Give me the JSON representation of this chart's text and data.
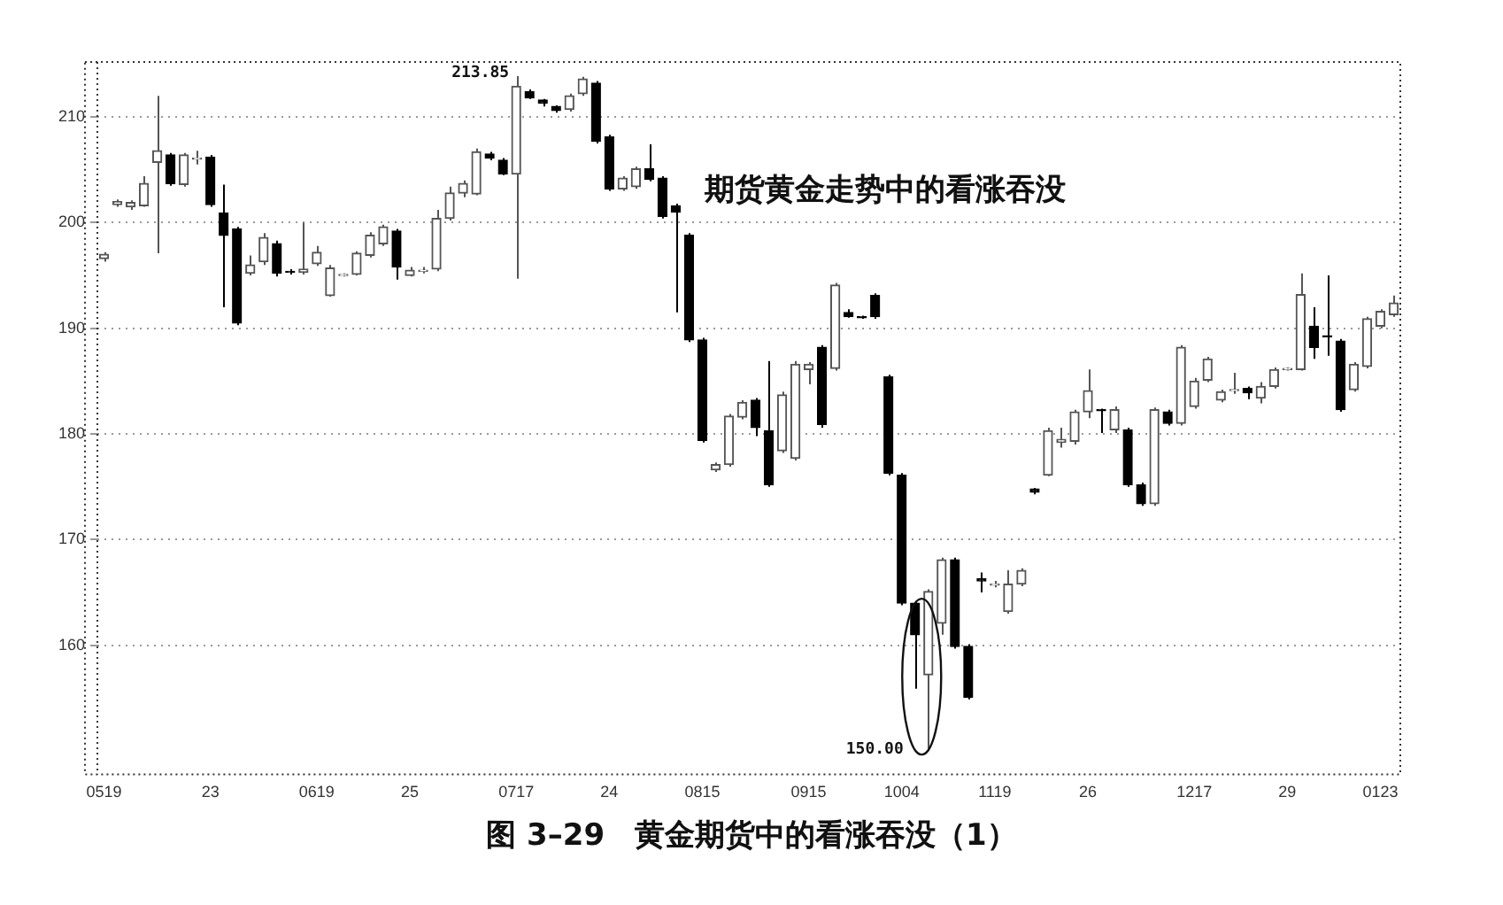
{
  "chart_data": {
    "type": "candlestick",
    "title": "图 3–29　黄金期货中的看涨吞没（1）",
    "annotations": [
      "期货黄金走势中的看涨吞没",
      "213.85",
      "150.00"
    ],
    "categories": [
      "0519",
      null,
      null,
      null,
      null,
      null,
      null,
      null,
      "23",
      null,
      null,
      null,
      null,
      null,
      null,
      null,
      "0619",
      null,
      null,
      null,
      null,
      null,
      null,
      "25",
      null,
      null,
      null,
      null,
      null,
      null,
      null,
      "0717",
      null,
      null,
      null,
      null,
      null,
      null,
      "24",
      null,
      null,
      null,
      null,
      null,
      null,
      "0815",
      null,
      null,
      null,
      null,
      null,
      null,
      null,
      "0915",
      null,
      null,
      null,
      null,
      null,
      null,
      "1004",
      null,
      null,
      null,
      null,
      null,
      null,
      "1119",
      null,
      null,
      null,
      null,
      null,
      null,
      "26",
      null,
      null,
      null,
      null,
      null,
      null,
      null,
      "1217",
      null,
      null,
      null,
      null,
      null,
      null,
      "29",
      null,
      null,
      null,
      null,
      null,
      null,
      "0123",
      null
    ],
    "colors": [
      "#555555",
      "#555555",
      "#555555",
      "#555555",
      "#555555",
      "#000000",
      "#555555",
      "#555555",
      "#000000",
      "#000000",
      "#000000",
      "#555555",
      "#555555",
      "#000000",
      "#000000",
      "#555555",
      "#555555",
      "#555555",
      "#555555",
      "#555555",
      "#555555",
      "#555555",
      "#000000",
      "#555555",
      "#555555",
      "#555555",
      "#555555",
      "#555555",
      "#555555",
      "#000000",
      "#000000",
      "#555555",
      "#000000",
      "#000000",
      "#000000",
      "#555555",
      "#555555",
      "#000000",
      "#000000",
      "#555555",
      "#555555",
      "#000000",
      "#000000",
      "#000000",
      "#000000",
      "#000000",
      "#555555",
      "#555555",
      "#555555",
      "#000000",
      "#000000",
      "#555555",
      "#555555",
      "#555555",
      "#000000",
      "#555555",
      "#000000",
      "#000000",
      "#000000",
      "#000000",
      "#000000",
      "#000000",
      "#555555",
      "#555555",
      "#000000",
      "#000000",
      "#000000",
      "#555555",
      "#555555",
      "#555555",
      "#000000",
      "#555555",
      "#555555",
      "#555555",
      "#555555",
      "#000000",
      "#555555",
      "#000000",
      "#000000",
      "#555555",
      "#000000",
      "#555555",
      "#555555",
      "#555555",
      "#555555",
      "#555555",
      "#000000",
      "#555555",
      "#555555",
      "#555555",
      "#555555",
      "#000000",
      "#000000",
      "#000000",
      "#555555",
      "#555555",
      "#555555",
      "#555555"
    ],
    "ohlc": [
      [
        196.6,
        197.2,
        196.3,
        197.0
      ],
      [
        201.7,
        202.2,
        201.5,
        202.0
      ],
      [
        201.5,
        202.1,
        201.2,
        201.9
      ],
      [
        201.6,
        204.4,
        201.5,
        203.7
      ],
      [
        205.7,
        212.0,
        197.1,
        206.8
      ],
      [
        206.4,
        206.6,
        203.5,
        203.7
      ],
      [
        203.6,
        206.6,
        203.4,
        206.4
      ],
      [
        206.0,
        206.8,
        205.5,
        206.1
      ],
      [
        206.2,
        206.4,
        201.5,
        201.7
      ],
      [
        200.9,
        203.6,
        192.0,
        198.8
      ],
      [
        199.4,
        199.6,
        190.3,
        190.5
      ],
      [
        195.2,
        196.9,
        195.0,
        196.0
      ],
      [
        196.3,
        199.0,
        196.0,
        198.6
      ],
      [
        198.0,
        198.3,
        194.9,
        195.2
      ],
      [
        195.4,
        195.6,
        195.1,
        195.3
      ],
      [
        195.3,
        200.0,
        195.1,
        195.6
      ],
      [
        196.1,
        197.8,
        195.9,
        197.2
      ],
      [
        193.1,
        196.0,
        193.0,
        195.7
      ],
      [
        195.0,
        195.2,
        194.9,
        195.1
      ],
      [
        195.1,
        197.3,
        195.0,
        197.1
      ],
      [
        196.9,
        199.1,
        196.7,
        198.8
      ],
      [
        198.0,
        199.8,
        197.8,
        199.6
      ],
      [
        199.2,
        199.4,
        194.6,
        195.8
      ],
      [
        195.0,
        195.8,
        194.9,
        195.5
      ],
      [
        195.4,
        195.8,
        195.2,
        195.5
      ],
      [
        195.6,
        201.2,
        195.4,
        200.4
      ],
      [
        200.4,
        203.4,
        200.2,
        202.8
      ],
      [
        202.8,
        204.0,
        202.4,
        203.7
      ],
      [
        202.7,
        207.0,
        202.6,
        206.7
      ],
      [
        206.5,
        206.7,
        205.9,
        206.1
      ],
      [
        205.9,
        206.1,
        204.5,
        204.6
      ],
      [
        204.6,
        213.85,
        194.7,
        212.9
      ],
      [
        212.4,
        212.6,
        211.7,
        211.8
      ],
      [
        211.6,
        211.7,
        211.0,
        211.3
      ],
      [
        211.0,
        211.1,
        210.4,
        210.6
      ],
      [
        210.7,
        212.2,
        210.5,
        212.0
      ],
      [
        212.2,
        213.8,
        212.0,
        213.6
      ],
      [
        213.2,
        213.4,
        207.5,
        207.7
      ],
      [
        208.1,
        208.3,
        203.0,
        203.2
      ],
      [
        203.2,
        204.4,
        203.0,
        204.2
      ],
      [
        203.4,
        205.3,
        203.2,
        205.1
      ],
      [
        205.1,
        207.4,
        203.9,
        204.1
      ],
      [
        204.2,
        204.4,
        200.4,
        200.6
      ],
      [
        201.6,
        201.8,
        191.5,
        201.0
      ],
      [
        198.8,
        199.0,
        188.7,
        188.9
      ],
      [
        188.9,
        189.1,
        179.2,
        179.4
      ],
      [
        176.6,
        177.3,
        176.4,
        177.1
      ],
      [
        177.1,
        181.9,
        176.9,
        181.7
      ],
      [
        181.6,
        183.2,
        181.4,
        183.0
      ],
      [
        183.2,
        183.4,
        179.8,
        180.6
      ],
      [
        180.3,
        186.9,
        175.0,
        175.2
      ],
      [
        178.4,
        184.0,
        178.2,
        183.7
      ],
      [
        177.7,
        186.9,
        177.5,
        186.6
      ],
      [
        186.1,
        186.8,
        184.7,
        186.6
      ],
      [
        188.2,
        188.4,
        180.6,
        180.9
      ],
      [
        186.2,
        194.3,
        186.0,
        194.1
      ],
      [
        191.5,
        191.8,
        191.0,
        191.1
      ],
      [
        191.1,
        191.2,
        190.9,
        191.0
      ],
      [
        193.1,
        193.3,
        190.9,
        191.1
      ],
      [
        185.4,
        185.6,
        176.1,
        176.3
      ],
      [
        176.1,
        176.3,
        163.8,
        164.0
      ],
      [
        164.0,
        164.2,
        155.9,
        161.0
      ],
      [
        157.2,
        165.3,
        150.0,
        165.1
      ],
      [
        162.1,
        168.3,
        161.0,
        168.1
      ],
      [
        168.1,
        168.3,
        159.7,
        159.9
      ],
      [
        159.9,
        160.1,
        154.9,
        155.1
      ],
      [
        166.3,
        166.9,
        165.0,
        166.1
      ],
      [
        165.7,
        166.1,
        165.5,
        165.8
      ],
      [
        163.2,
        167.1,
        163.0,
        165.8
      ],
      [
        165.8,
        167.3,
        165.6,
        167.1
      ],
      [
        174.8,
        174.9,
        174.3,
        174.5
      ],
      [
        176.1,
        180.6,
        176.0,
        180.3
      ],
      [
        179.2,
        180.6,
        178.7,
        179.5
      ],
      [
        179.3,
        182.3,
        179.0,
        182.1
      ],
      [
        182.1,
        186.1,
        181.5,
        184.1
      ],
      [
        182.3,
        182.4,
        180.1,
        182.2
      ],
      [
        180.4,
        182.6,
        180.1,
        182.3
      ],
      [
        180.4,
        180.6,
        175.0,
        175.2
      ],
      [
        175.2,
        175.4,
        173.2,
        173.4
      ],
      [
        173.4,
        182.5,
        173.2,
        182.3
      ],
      [
        182.1,
        182.3,
        180.8,
        181.0
      ],
      [
        181.0,
        188.4,
        180.8,
        188.2
      ],
      [
        182.6,
        185.3,
        182.4,
        185.0
      ],
      [
        185.1,
        187.3,
        184.9,
        187.1
      ],
      [
        183.2,
        184.2,
        183.0,
        184.0
      ],
      [
        184.1,
        185.8,
        183.8,
        184.2
      ],
      [
        184.3,
        184.5,
        183.3,
        183.9
      ],
      [
        183.4,
        184.9,
        182.9,
        184.5
      ],
      [
        184.5,
        186.3,
        184.3,
        186.1
      ],
      [
        186.1,
        186.3,
        186.0,
        186.2
      ],
      [
        186.1,
        195.2,
        186.0,
        193.2
      ],
      [
        190.2,
        192.0,
        187.1,
        188.2
      ],
      [
        189.3,
        195.0,
        187.4,
        189.2
      ],
      [
        188.8,
        189.0,
        182.1,
        182.3
      ],
      [
        184.2,
        186.8,
        184.0,
        186.6
      ],
      [
        186.4,
        191.1,
        186.2,
        190.9
      ],
      [
        190.2,
        191.8,
        190.0,
        191.6
      ],
      [
        191.3,
        193.1,
        191.1,
        192.4
      ]
    ],
    "ylim": [
      147.8,
      215.2
    ],
    "yticks": [
      160,
      170,
      180,
      190,
      200,
      210
    ],
    "grid": "y",
    "legend": false
  }
}
